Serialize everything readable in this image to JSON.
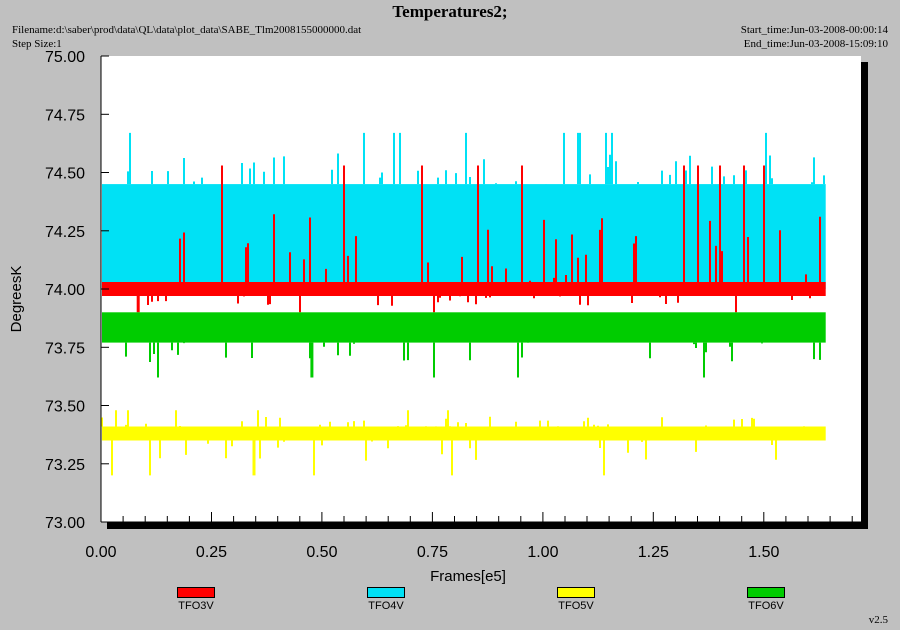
{
  "header": {
    "title": "Temperatures2;",
    "filename": "Filename:d:\\saber\\prod\\data\\QL\\data\\plot_data\\SABE_Tlm2008155000000.dat",
    "step_size": "Step Size:1",
    "start_time": "Start_time:Jun-03-2008-00:00:14",
    "end_time": "End_time:Jun-03-2008-15:09:10"
  },
  "footer": {
    "version": "v2.5"
  },
  "chart_data": {
    "type": "line",
    "title": "Temperatures2;",
    "xlabel": "Frames[e5]",
    "ylabel": "DegreesK",
    "xlim": [
      0.0,
      1.72
    ],
    "ylim": [
      73.0,
      75.0
    ],
    "x_ticks": [
      0.0,
      0.25,
      0.5,
      0.75,
      1.0,
      1.25,
      1.5
    ],
    "x_tick_labels": [
      "0.00",
      "0.25",
      "0.50",
      "0.75",
      "1.00",
      "1.25",
      "1.50"
    ],
    "y_ticks": [
      73.0,
      73.25,
      73.5,
      73.75,
      74.0,
      74.25,
      74.5,
      74.75,
      75.0
    ],
    "y_tick_labels": [
      "73.00",
      "73.25",
      "73.50",
      "73.75",
      "74.00",
      "74.25",
      "74.50",
      "74.75",
      "75.00"
    ],
    "grid": false,
    "legend_position": "bottom",
    "series": [
      {
        "name": "TFO3V",
        "color": "#ff0000",
        "x_range": [
          0.0,
          1.64
        ],
        "low": 73.97,
        "high": 74.03,
        "spike_max": 74.53,
        "spike_min": 73.9
      },
      {
        "name": "TFO4V",
        "color": "#00e1f5",
        "x_range": [
          0.0,
          1.64
        ],
        "low": 74.0,
        "high": 74.45,
        "spike_max": 74.67,
        "spike_min": 73.97
      },
      {
        "name": "TFO5V",
        "color": "#ffff00",
        "x_range": [
          0.0,
          1.64
        ],
        "low": 73.35,
        "high": 73.41,
        "spike_max": 73.48,
        "spike_min": 73.2
      },
      {
        "name": "TFO6V",
        "color": "#00cc00",
        "x_range": [
          0.0,
          1.64
        ],
        "low": 73.77,
        "high": 73.9,
        "spike_max": 73.9,
        "spike_min": 73.62
      }
    ]
  }
}
